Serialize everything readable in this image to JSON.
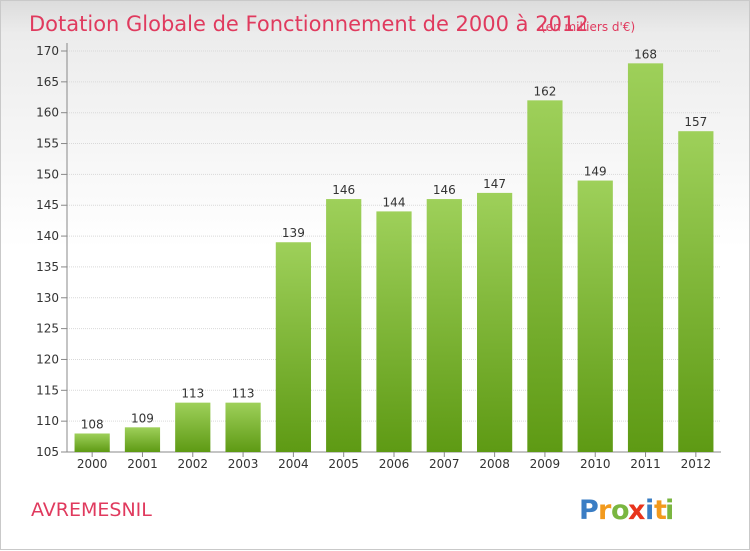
{
  "chart_data": {
    "type": "bar",
    "title": "Dotation Globale de Fonctionnement de 2000 à 2012",
    "subtitle": "(en milliers d'€)",
    "categories": [
      "2000",
      "2001",
      "2002",
      "2003",
      "2004",
      "2005",
      "2006",
      "2007",
      "2008",
      "2009",
      "2010",
      "2011",
      "2012"
    ],
    "values": [
      108,
      109,
      113,
      113,
      139,
      146,
      144,
      146,
      147,
      162,
      149,
      168,
      157
    ],
    "ylim": [
      105,
      170
    ],
    "yticks": [
      105,
      110,
      115,
      120,
      125,
      130,
      135,
      140,
      145,
      150,
      155,
      160,
      165,
      170
    ],
    "grid": true,
    "bar_color_top": "#9ed05a",
    "bar_color_bottom": "#5e9a14"
  },
  "footer": {
    "place": "AVREMESNIL",
    "logo_letters": [
      "P",
      "r",
      "o",
      "x",
      "i",
      "t",
      "i"
    ],
    "logo_colors": [
      "#3a7dc4",
      "#f29a1d",
      "#7ab640",
      "#e8341c",
      "#3a7dc4",
      "#f29a1d",
      "#7ab640"
    ]
  }
}
